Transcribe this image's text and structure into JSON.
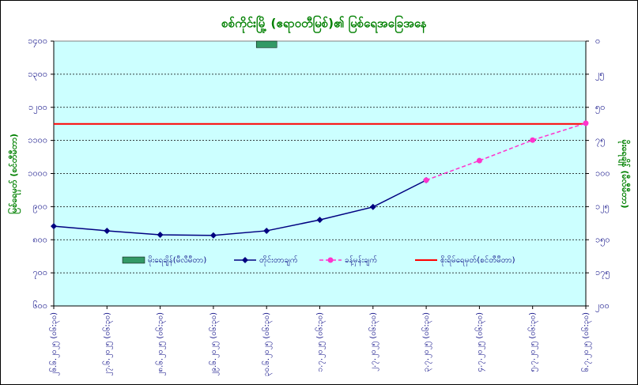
{
  "chart_data": {
    "type": "line",
    "title": "စစ်ကိုင်းမြို့ (ဧရာဝတီမြစ်)၏ မြစ်ရေအခြေအနေ",
    "ylabel": "မြစ်ရေမှတ် (စင်တီမီတာ)",
    "y2label": "မိုးရေချိန် (မီလီမီတာ)",
    "categories": [
      "၂၆.၆.၂၀၂၅ (၀၆:၃၀)",
      "၂၇.၆.၂၀၂၅ (၀၆:၃၀)",
      "၂၈.၆.၂၀၂၅ (၀၆:၃၀)",
      "၂၉.၆.၂၀၂၅ (၀၆:၃၀)",
      "၃၀.၆.၂၀၂၅ (၀၆:၃၀)",
      "၁.၇.၂၀၂၅ (၀၆:၃၀)",
      "၂.၇.၂၀၂၅ (၀၆:၃၀)",
      "၃.၇.၂၀၂၅ (၀၆:၃၀)",
      "၄.၇.၂၀၂၅ (၀၆:၃၀)",
      "၅.၇.၂၀၂၅ (၀၆:၃၀)",
      "၆.၇.၂၀၂၅ (၀၆:၃၀)"
    ],
    "series": [
      {
        "name": "မိုးရေချိန်(မီလီမီတာ)",
        "type": "bar",
        "axis": "y2",
        "color": "#339966",
        "values": [
          null,
          null,
          null,
          null,
          5,
          null,
          null,
          null,
          null,
          null,
          null
        ]
      },
      {
        "name": "တိုင်းတာချက်",
        "type": "line",
        "color": "#000080",
        "dashed": false,
        "marker": "diamond",
        "values": [
          841,
          827,
          815,
          813,
          827,
          860,
          899,
          980,
          null,
          null,
          null
        ]
      },
      {
        "name": "ခန့်မှန်းချက်",
        "type": "line",
        "color": "#ff33cc",
        "dashed": true,
        "marker": "circle",
        "values": [
          null,
          null,
          null,
          null,
          null,
          null,
          null,
          980,
          1039,
          1101,
          1152
        ]
      }
    ],
    "danger": {
      "name": "စိုးရိမ်ရေမှတ်(စင်တီမီတာ)",
      "color": "#ff0000",
      "value": 1150
    },
    "ylim": [
      600,
      1400
    ],
    "yticks": [
      {
        "value": 600,
        "label": "၆၀၀"
      },
      {
        "value": 700,
        "label": "၇၀၀"
      },
      {
        "value": 800,
        "label": "၈၀၀"
      },
      {
        "value": 900,
        "label": "၉၀၀"
      },
      {
        "value": 1000,
        "label": "၁၀၀၀"
      },
      {
        "value": 1100,
        "label": "၁၁၀၀"
      },
      {
        "value": 1200,
        "label": "၁၂၀၀"
      },
      {
        "value": 1300,
        "label": "၁၃၀၀"
      },
      {
        "value": 1400,
        "label": "၁၄၀၀"
      }
    ],
    "y2lim": [
      200,
      0
    ],
    "y2ticks": [
      {
        "value": 200,
        "label": "၂၀၀"
      },
      {
        "value": 175,
        "label": "၁၇၅"
      },
      {
        "value": 150,
        "label": "၁၅၀"
      },
      {
        "value": 125,
        "label": "၁၂၅"
      },
      {
        "value": 100,
        "label": "၁၀၀"
      },
      {
        "value": 75,
        "label": "၇၅"
      },
      {
        "value": 50,
        "label": "၅၀"
      },
      {
        "value": 25,
        "label": "၂၅"
      },
      {
        "value": 0,
        "label": "၀"
      }
    ],
    "grid": true
  }
}
